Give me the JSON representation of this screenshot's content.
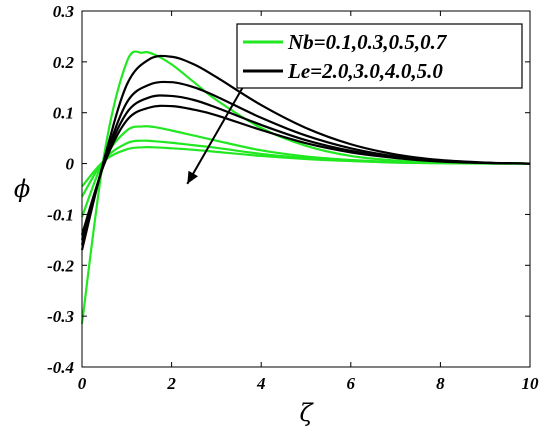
{
  "chart_data": {
    "type": "line",
    "xlabel": "ζ",
    "ylabel": "ϕ",
    "xlim": [
      0,
      10
    ],
    "ylim": [
      -0.4,
      0.3
    ],
    "xticks": [
      "0",
      "2",
      "4",
      "6",
      "8",
      "10"
    ],
    "yticks": [
      "-0.4",
      "-0.3",
      "-0.2",
      "-0.1",
      "0",
      "0.1",
      "0.2",
      "0.3"
    ],
    "grid": false,
    "legend": {
      "placement": "top-right",
      "entries": [
        {
          "label": "Nb=0.1,0.3,0.5,0.7",
          "color": "#22e822"
        },
        {
          "label": "Le=2.0,3.0,4.0,5.0",
          "color": "#000000"
        }
      ]
    },
    "annotation": {
      "type": "arrow",
      "from": [
        3.85,
        0.19
      ],
      "to": [
        2.35,
        -0.04
      ]
    },
    "series_groups": [
      {
        "legend_label": "Nb=0.1,0.3,0.5,0.7",
        "color": "#22e822",
        "curves": [
          {
            "x": [
              0,
              0.5,
              1.0,
              1.35,
              1.6,
              2.0,
              2.5,
              3,
              4,
              5,
              6,
              7,
              8,
              9,
              10
            ],
            "y": [
              -0.315,
              0.02,
              0.2,
              0.218,
              0.215,
              0.195,
              0.16,
              0.125,
              0.07,
              0.035,
              0.015,
              0.006,
              0.002,
              0.0005,
              0
            ]
          },
          {
            "x": [
              0,
              0.5,
              1.0,
              1.35,
              1.6,
              2.0,
              2.5,
              3,
              4,
              5,
              6,
              7,
              8,
              9,
              10
            ],
            "y": [
              -0.105,
              0.01,
              0.065,
              0.073,
              0.072,
              0.065,
              0.055,
              0.045,
              0.026,
              0.014,
              0.007,
              0.003,
              0.001,
              0.0003,
              0
            ]
          },
          {
            "x": [
              0,
              0.5,
              1.0,
              1.35,
              1.6,
              2.0,
              2.5,
              3,
              4,
              5,
              6,
              7,
              8,
              9,
              10
            ],
            "y": [
              -0.065,
              0.008,
              0.04,
              0.045,
              0.044,
              0.041,
              0.036,
              0.031,
              0.019,
              0.011,
              0.006,
              0.002,
              0.001,
              0.0002,
              0
            ]
          },
          {
            "x": [
              0,
              0.5,
              1.0,
              1.35,
              1.6,
              2.0,
              2.5,
              3,
              4,
              5,
              6,
              7,
              8,
              9,
              10
            ],
            "y": [
              -0.045,
              0.006,
              0.028,
              0.032,
              0.032,
              0.03,
              0.027,
              0.023,
              0.015,
              0.009,
              0.005,
              0.002,
              0.0008,
              0.0002,
              0
            ]
          }
        ]
      },
      {
        "legend_label": "Le=2.0,3.0,4.0,5.0",
        "color": "#000000",
        "curves": [
          {
            "x": [
              0,
              0.5,
              1.0,
              1.5,
              2.0,
              2.5,
              3,
              4,
              5,
              6,
              7,
              8,
              9,
              10
            ],
            "y": [
              -0.17,
              0.01,
              0.155,
              0.205,
              0.21,
              0.195,
              0.17,
              0.115,
              0.07,
              0.038,
              0.018,
              0.007,
              0.002,
              0
            ]
          },
          {
            "x": [
              0,
              0.5,
              1.0,
              1.5,
              2.0,
              2.5,
              3,
              4,
              5,
              6,
              7,
              8,
              9,
              10
            ],
            "y": [
              -0.16,
              0.005,
              0.12,
              0.155,
              0.16,
              0.15,
              0.132,
              0.09,
              0.055,
              0.03,
              0.014,
              0.005,
              0.0015,
              0
            ]
          },
          {
            "x": [
              0,
              0.5,
              1.0,
              1.5,
              2.0,
              2.5,
              3,
              4,
              5,
              6,
              7,
              8,
              9,
              10
            ],
            "y": [
              -0.15,
              0.003,
              0.1,
              0.13,
              0.133,
              0.125,
              0.11,
              0.076,
              0.046,
              0.025,
              0.012,
              0.005,
              0.0013,
              0
            ]
          },
          {
            "x": [
              0,
              0.5,
              1.0,
              1.5,
              2.0,
              2.5,
              3,
              4,
              5,
              6,
              7,
              8,
              9,
              10
            ],
            "y": [
              -0.14,
              0.0,
              0.085,
              0.11,
              0.113,
              0.106,
              0.095,
              0.066,
              0.04,
              0.022,
              0.011,
              0.004,
              0.0012,
              0
            ]
          }
        ]
      }
    ]
  }
}
